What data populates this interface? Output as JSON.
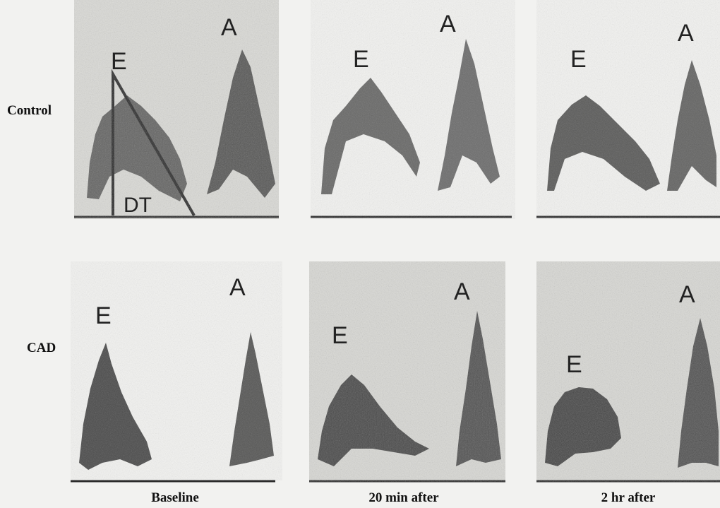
{
  "rows": [
    "Control",
    "CAD"
  ],
  "columns": [
    "Baseline",
    "20 min after",
    "2 hr after"
  ],
  "wave_labels": {
    "early": "E",
    "atrial": "A",
    "deceleration_time": "DT"
  }
}
